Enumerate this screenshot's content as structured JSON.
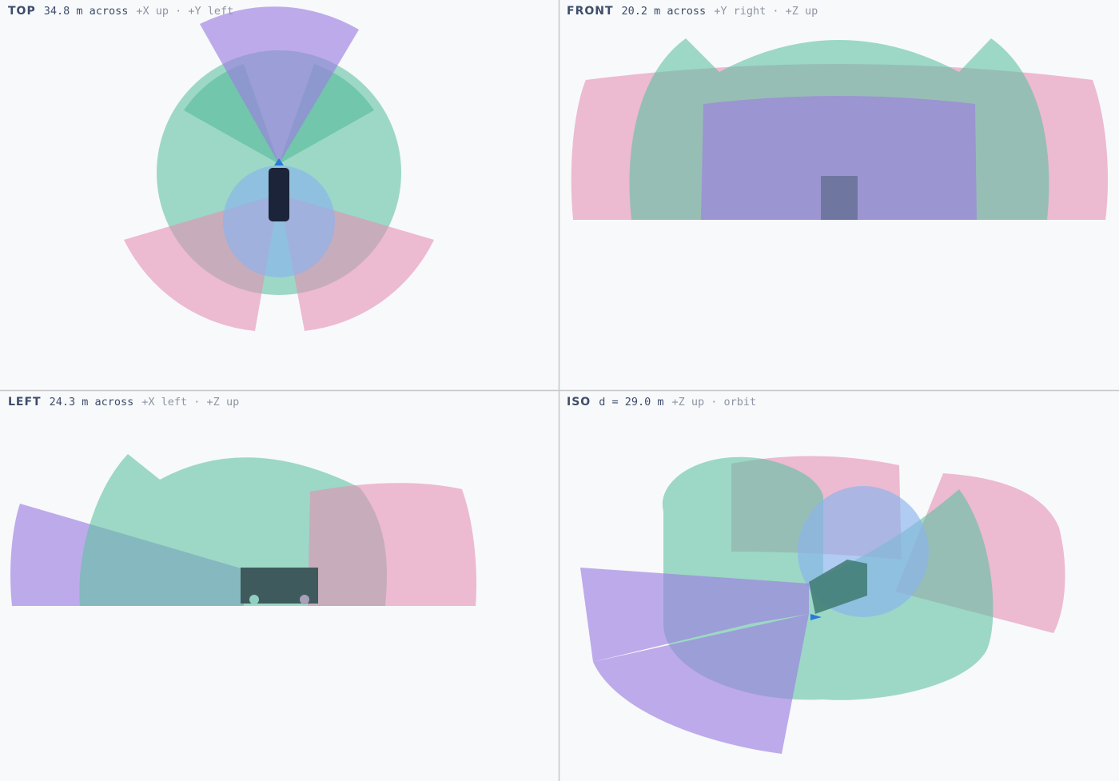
{
  "panels": [
    {
      "view": "TOP",
      "measure": "34.8 m across",
      "axes": "+X up · +Y left"
    },
    {
      "view": "FRONT",
      "measure": "20.2 m across",
      "axes": "+Y right · +Z up"
    },
    {
      "view": "LEFT",
      "measure": "24.3 m across",
      "axes": "+X left · +Z up"
    },
    {
      "view": "ISO",
      "measure": "d = 29.0 m",
      "axes": "+Z up · orbit"
    }
  ]
}
